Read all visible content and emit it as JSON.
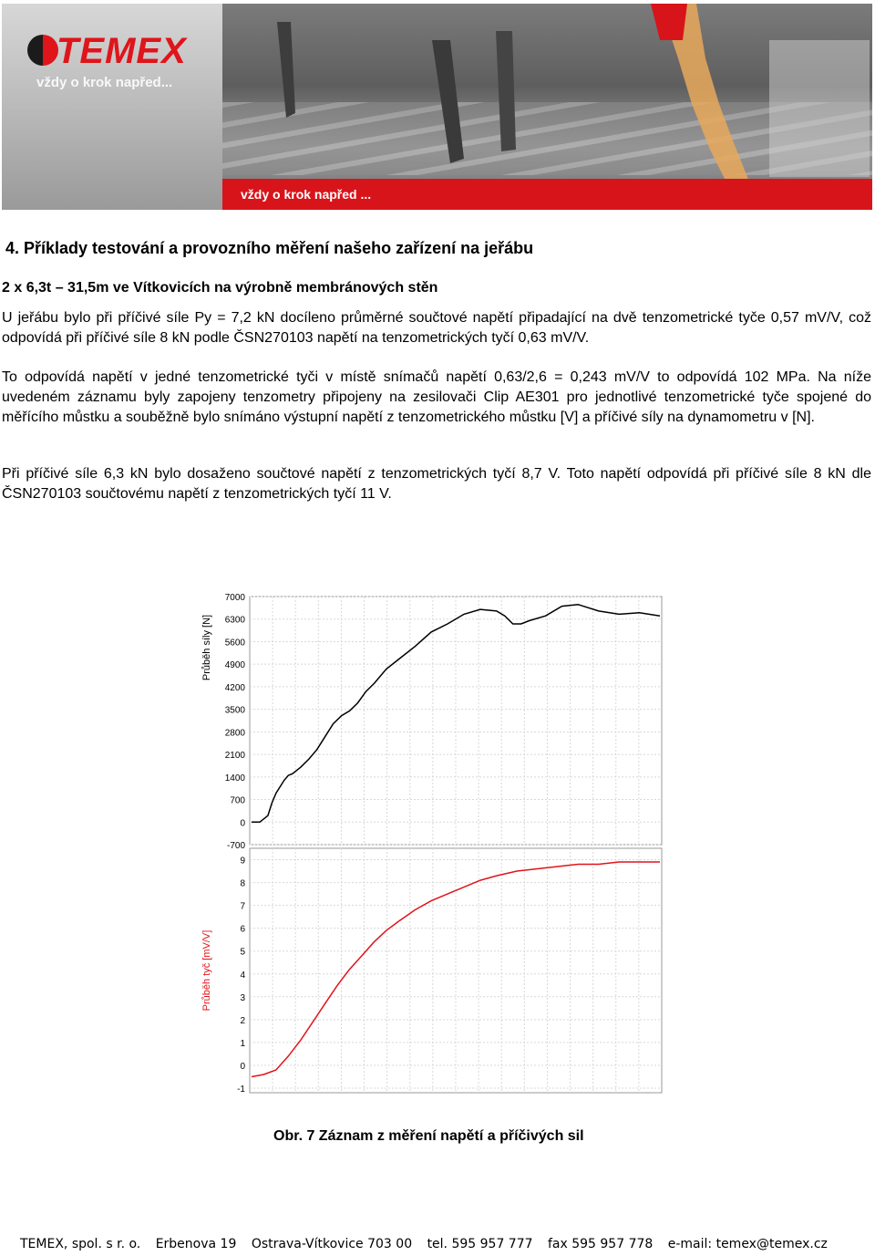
{
  "banner": {
    "logo": "TEMEX",
    "tagline": "vždy o krok napřed...",
    "stripe_text": "vždy o krok napřed ..."
  },
  "section_title": "4. Příklady testování a provozního měření našeho zařízení na jeřábu",
  "subtitle": "2 x 6,3t – 31,5m ve Vítkovicích na výrobně membránových stěn",
  "paragraphs": [
    "U jeřábu bylo při příčivé síle Py = 7,2 kN docíleno průměrné součtové napětí připadající na dvě tenzometrické tyče 0,57 mV/V, což odpovídá při příčivé síle 8 kN podle ČSN270103 napětí na tenzometrických tyčí 0,63 mV/V.",
    "To odpovídá napětí v jedné tenzometrické tyči v místě snímačů napětí 0,63/2,6 = 0,243 mV/V to odpovídá 102 MPa. Na níže uvedeném záznamu byly zapojeny tenzometry připojeny na zesilovači Clip AE301 pro jednotlivé tenzometrické tyče spojené do měřícího můstku a souběžně bylo snímáno výstupní napětí z tenzometrického můstku [V] a příčivé síly na dynamometru v [N].",
    "Při příčivé síle 6,3 kN bylo dosaženo součtové napětí z tenzometrických tyčí 8,7 V. Toto napětí odpovídá při příčivé síle 8 kN dle ČSN270103 součtovému napětí z tenzometrických tyčí 11 V."
  ],
  "chart_data": [
    {
      "type": "line",
      "ylabel": "Průběh síly [N]",
      "yticks": [
        7000,
        6300,
        5600,
        4900,
        4200,
        3500,
        2800,
        2100,
        1400,
        700,
        0,
        -700
      ],
      "ylim": [
        -700,
        7000
      ],
      "grid": true,
      "color": "#000000",
      "series": [
        {
          "x": [
            0,
            2,
            4,
            5,
            6,
            7,
            8,
            9,
            10,
            12,
            14,
            16,
            18,
            20,
            22,
            24,
            26,
            28,
            30,
            33,
            36,
            40,
            44,
            48,
            52,
            56,
            60,
            62,
            64,
            66,
            68,
            72,
            76,
            80,
            85,
            90,
            95,
            100
          ],
          "values": [
            0,
            0,
            200,
            600,
            900,
            1100,
            1300,
            1450,
            1500,
            1700,
            1950,
            2250,
            2650,
            3050,
            3300,
            3450,
            3700,
            4050,
            4300,
            4750,
            5050,
            5450,
            5900,
            6150,
            6450,
            6600,
            6550,
            6400,
            6150,
            6150,
            6250,
            6400,
            6700,
            6750,
            6550,
            6450,
            6500,
            6400
          ]
        }
      ]
    },
    {
      "type": "line",
      "ylabel": "Průběh tyč [mV/V]",
      "yticks": [
        9,
        8,
        7,
        6,
        5,
        4,
        3,
        2,
        1,
        0,
        -1
      ],
      "ylim": [
        -1.2,
        9.5
      ],
      "grid": true,
      "color": "#e0141b",
      "series": [
        {
          "x": [
            0,
            3,
            6,
            9,
            12,
            15,
            18,
            21,
            24,
            27,
            30,
            33,
            36,
            40,
            44,
            48,
            52,
            56,
            60,
            65,
            70,
            75,
            80,
            85,
            90,
            95,
            100
          ],
          "values": [
            -0.5,
            -0.4,
            -0.2,
            0.4,
            1.1,
            1.9,
            2.7,
            3.5,
            4.2,
            4.8,
            5.4,
            5.9,
            6.3,
            6.8,
            7.2,
            7.5,
            7.8,
            8.1,
            8.3,
            8.5,
            8.6,
            8.7,
            8.8,
            8.8,
            8.9,
            8.9,
            8.9
          ]
        }
      ]
    }
  ],
  "caption": "Obr. 7 Záznam z měření napětí a příčivých sil",
  "footer": {
    "company": "TEMEX, spol. s r. o.",
    "address": "Erbenova 19",
    "city": "Ostrava-Vítkovice  703 00",
    "tel": "tel. 595 957 777",
    "fax": "fax 595 957 778",
    "email": "e-mail: temex@temex.cz"
  }
}
